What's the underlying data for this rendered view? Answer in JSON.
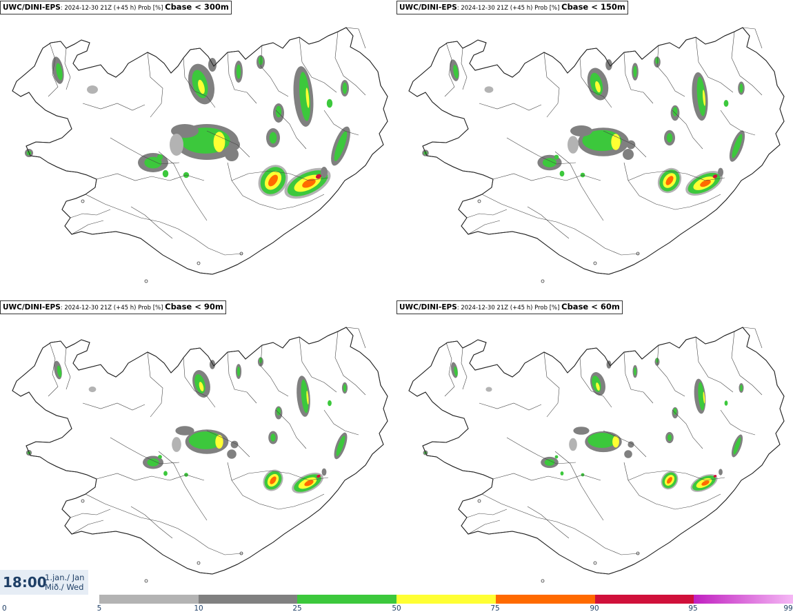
{
  "panels": [
    {
      "model": "UWC/DINI-EPS",
      "meta": ": 2024-12-30 21Z (+45 h) Prob [%] ",
      "threshold": "Cbase < 300m",
      "scale": 1.0
    },
    {
      "model": "UWC/DINI-EPS",
      "meta": ": 2024-12-30 21Z (+45 h) Prob [%] ",
      "threshold": "Cbase < 150m",
      "scale": 0.8
    },
    {
      "model": "UWC/DINI-EPS",
      "meta": ": 2024-12-30 21Z (+45 h) Prob [%] ",
      "threshold": "Cbase < 90m",
      "scale": 0.68
    },
    {
      "model": "UWC/DINI-EPS",
      "meta": ": 2024-12-30 21Z (+45 h) Prob [%] ",
      "threshold": "Cbase < 60m",
      "scale": 0.58
    }
  ],
  "time": {
    "clock": "18:00",
    "date_line1": "1.jan./ Jan",
    "date_line2": "Mið./ Wed"
  },
  "legend": {
    "ticks": [
      "0",
      "5",
      "10",
      "25",
      "50",
      "75",
      "90",
      "95",
      "99"
    ],
    "colors": [
      "#b3b3b3",
      "#808080",
      "#3cc83c",
      "#ffff33",
      "#ff6a00",
      "#d0103a",
      "#c020c0",
      "#f5b8f5"
    ]
  }
}
